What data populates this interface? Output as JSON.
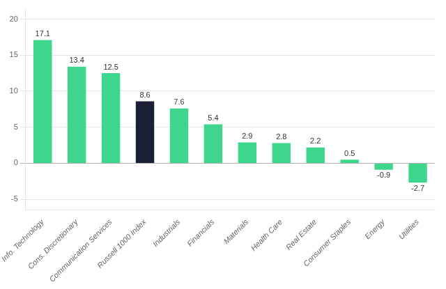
{
  "chart_data": {
    "type": "bar",
    "categories": [
      "Info. Technology",
      "Cons. Discretionary",
      "Communication Services",
      "Russell 1000 Index",
      "Industrials",
      "Financials",
      "Materials",
      "Health Care",
      "Real Estate",
      "Consumer Staples",
      "Energy",
      "Utilities"
    ],
    "values": [
      17.1,
      13.4,
      12.5,
      8.6,
      7.6,
      5.4,
      2.9,
      2.8,
      2.2,
      0.5,
      -0.9,
      -2.7
    ],
    "colors": [
      "#3dd68c",
      "#3dd68c",
      "#3dd68c",
      "#1a2035",
      "#3dd68c",
      "#3dd68c",
      "#3dd68c",
      "#3dd68c",
      "#3dd68c",
      "#3dd68c",
      "#3dd68c",
      "#3dd68c"
    ],
    "ylim": [
      -6.5,
      21.5
    ],
    "yticks": [
      -5,
      0,
      5,
      10,
      15,
      20
    ],
    "grid": true,
    "data_labels": true
  }
}
